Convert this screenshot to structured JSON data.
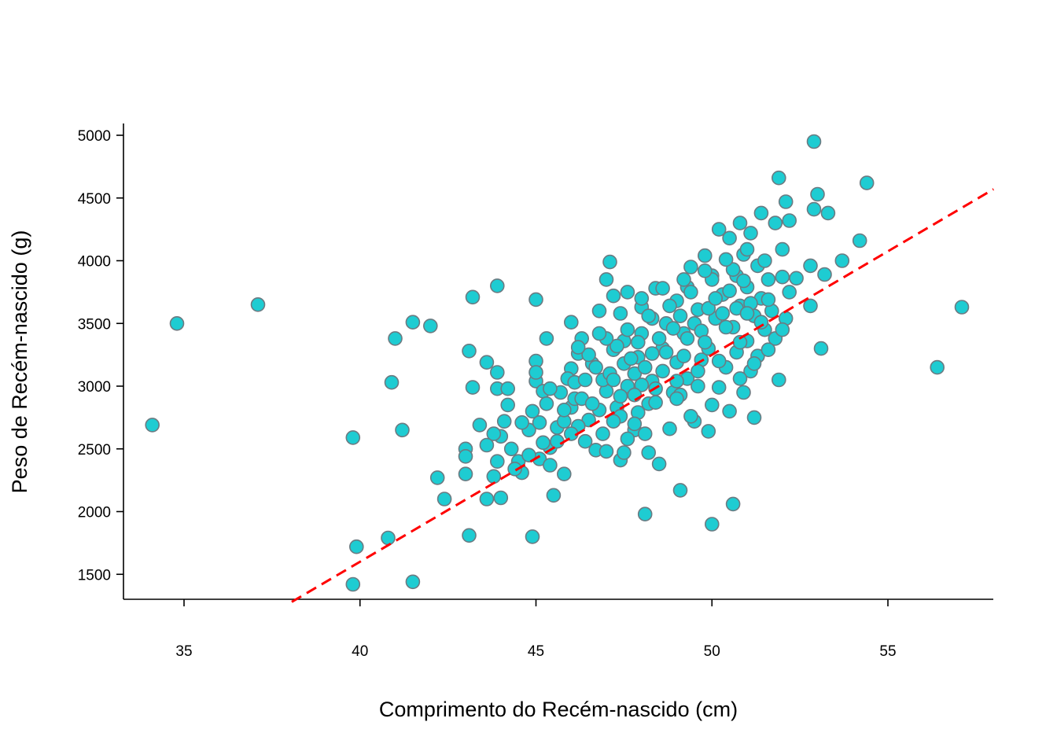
{
  "chart_data": {
    "type": "scatter",
    "title": "",
    "xlabel": "Comprimento do Recém-nascido (cm)",
    "ylabel": "Peso de Recém-nascido (g)",
    "xlim": [
      33.3,
      58.0
    ],
    "ylim": [
      1280,
      5100
    ],
    "xticks": [
      35,
      40,
      45,
      50,
      55
    ],
    "yticks": [
      1500,
      2000,
      2500,
      3000,
      3500,
      4000,
      4500,
      5000
    ],
    "grid": false,
    "legend": "none",
    "point_fill": "#1ECCD2",
    "point_stroke": "#6B7B82",
    "trendline": {
      "style": "dashed",
      "color": "#FF0000",
      "intercept": -5000,
      "slope": 165
    },
    "points": [
      [
        34.1,
        2690
      ],
      [
        34.8,
        3500
      ],
      [
        37.1,
        3650
      ],
      [
        39.8,
        2590
      ],
      [
        39.9,
        1720
      ],
      [
        39.8,
        1420
      ],
      [
        40.8,
        1790
      ],
      [
        40.9,
        3030
      ],
      [
        41.0,
        3380
      ],
      [
        41.2,
        2650
      ],
      [
        41.5,
        1440
      ],
      [
        41.5,
        3510
      ],
      [
        42.0,
        3480
      ],
      [
        42.2,
        2270
      ],
      [
        42.4,
        2100
      ],
      [
        43.0,
        2500
      ],
      [
        43.0,
        2300
      ],
      [
        43.0,
        2440
      ],
      [
        43.1,
        3280
      ],
      [
        43.2,
        3710
      ],
      [
        43.2,
        2990
      ],
      [
        43.4,
        2690
      ],
      [
        43.6,
        3190
      ],
      [
        43.1,
        1810
      ],
      [
        43.6,
        2100
      ],
      [
        43.8,
        2280
      ],
      [
        43.9,
        2400
      ],
      [
        43.9,
        2980
      ],
      [
        43.9,
        3110
      ],
      [
        43.9,
        3800
      ],
      [
        44.0,
        2110
      ],
      [
        44.0,
        2600
      ],
      [
        44.1,
        2720
      ],
      [
        44.2,
        2980
      ],
      [
        44.3,
        2500
      ],
      [
        44.5,
        2400
      ],
      [
        44.6,
        2310
      ],
      [
        44.8,
        2650
      ],
      [
        44.9,
        2800
      ],
      [
        44.9,
        1800
      ],
      [
        45.0,
        3040
      ],
      [
        45.0,
        3200
      ],
      [
        45.0,
        3690
      ],
      [
        45.1,
        2710
      ],
      [
        45.1,
        2420
      ],
      [
        45.2,
        2960
      ],
      [
        45.3,
        2860
      ],
      [
        45.3,
        3380
      ],
      [
        45.4,
        2370
      ],
      [
        45.4,
        2510
      ],
      [
        45.5,
        2130
      ],
      [
        45.6,
        2670
      ],
      [
        45.8,
        2720
      ],
      [
        45.8,
        2300
      ],
      [
        46.0,
        3510
      ],
      [
        46.0,
        3140
      ],
      [
        46.0,
        2830
      ],
      [
        46.1,
        2900
      ],
      [
        46.2,
        3260
      ],
      [
        46.3,
        3380
      ],
      [
        46.4,
        2560
      ],
      [
        46.5,
        2730
      ],
      [
        46.6,
        3180
      ],
      [
        46.7,
        2490
      ],
      [
        46.8,
        3600
      ],
      [
        46.9,
        2620
      ],
      [
        47.0,
        3850
      ],
      [
        47.0,
        2960
      ],
      [
        47.1,
        3990
      ],
      [
        47.2,
        3290
      ],
      [
        47.2,
        3720
      ],
      [
        47.3,
        2830
      ],
      [
        47.4,
        2410
      ],
      [
        47.4,
        2760
      ],
      [
        47.5,
        3360
      ],
      [
        47.5,
        2470
      ],
      [
        47.6,
        3750
      ],
      [
        47.6,
        3000
      ],
      [
        47.8,
        3100
      ],
      [
        47.8,
        2650
      ],
      [
        47.9,
        3230
      ],
      [
        47.9,
        2790
      ],
      [
        48.0,
        3420
      ],
      [
        48.0,
        3630
      ],
      [
        48.1,
        1980
      ],
      [
        48.1,
        2620
      ],
      [
        48.2,
        2860
      ],
      [
        48.3,
        3540
      ],
      [
        48.3,
        3040
      ],
      [
        48.4,
        3780
      ],
      [
        48.5,
        2380
      ],
      [
        48.6,
        3300
      ],
      [
        48.7,
        3500
      ],
      [
        48.8,
        2660
      ],
      [
        48.9,
        2950
      ],
      [
        49.0,
        3190
      ],
      [
        49.0,
        3680
      ],
      [
        49.1,
        2170
      ],
      [
        49.1,
        2930
      ],
      [
        49.2,
        3420
      ],
      [
        49.3,
        3790
      ],
      [
        49.3,
        3060
      ],
      [
        49.4,
        3950
      ],
      [
        49.5,
        2720
      ],
      [
        49.6,
        3610
      ],
      [
        49.7,
        3210
      ],
      [
        49.8,
        4040
      ],
      [
        49.9,
        3300
      ],
      [
        49.9,
        2640
      ],
      [
        50.0,
        3880
      ],
      [
        50.0,
        1900
      ],
      [
        50.1,
        3540
      ],
      [
        50.2,
        2990
      ],
      [
        50.2,
        4250
      ],
      [
        50.3,
        3730
      ],
      [
        50.4,
        3150
      ],
      [
        50.5,
        4180
      ],
      [
        50.5,
        2800
      ],
      [
        50.6,
        3470
      ],
      [
        50.6,
        2060
      ],
      [
        50.7,
        3880
      ],
      [
        50.7,
        3270
      ],
      [
        50.8,
        4300
      ],
      [
        50.8,
        3640
      ],
      [
        50.9,
        2950
      ],
      [
        50.9,
        4050
      ],
      [
        51.0,
        3360
      ],
      [
        51.0,
        3790
      ],
      [
        51.1,
        3120
      ],
      [
        51.1,
        4220
      ],
      [
        51.2,
        3560
      ],
      [
        51.2,
        2750
      ],
      [
        51.3,
        3960
      ],
      [
        51.3,
        3240
      ],
      [
        51.4,
        4380
      ],
      [
        51.4,
        3700
      ],
      [
        51.5,
        3450
      ],
      [
        51.5,
        4000
      ],
      [
        51.6,
        3850
      ],
      [
        51.7,
        3600
      ],
      [
        51.8,
        4300
      ],
      [
        51.8,
        3380
      ],
      [
        51.9,
        3050
      ],
      [
        51.9,
        4660
      ],
      [
        52.0,
        4090
      ],
      [
        52.0,
        3870
      ],
      [
        52.1,
        4470
      ],
      [
        52.1,
        3540
      ],
      [
        52.2,
        3750
      ],
      [
        52.2,
        4320
      ],
      [
        52.4,
        3860
      ],
      [
        52.8,
        3640
      ],
      [
        52.8,
        3960
      ],
      [
        52.9,
        4410
      ],
      [
        52.9,
        4950
      ],
      [
        53.0,
        4530
      ],
      [
        53.1,
        3300
      ],
      [
        53.2,
        3890
      ],
      [
        53.3,
        4380
      ],
      [
        53.7,
        4000
      ],
      [
        54.2,
        4160
      ],
      [
        54.4,
        4620
      ],
      [
        56.4,
        3150
      ],
      [
        57.1,
        3630
      ],
      [
        45.7,
        2950
      ],
      [
        45.9,
        3060
      ],
      [
        46.1,
        3030
      ],
      [
        46.3,
        2900
      ],
      [
        46.5,
        3250
      ],
      [
        46.7,
        3150
      ],
      [
        46.9,
        3050
      ],
      [
        47.1,
        3100
      ],
      [
        47.3,
        3320
      ],
      [
        47.5,
        3180
      ],
      [
        47.7,
        3220
      ],
      [
        47.9,
        3350
      ],
      [
        48.1,
        3150
      ],
      [
        48.3,
        3260
      ],
      [
        48.5,
        3380
      ],
      [
        48.7,
        3270
      ],
      [
        48.9,
        3460
      ],
      [
        49.1,
        3560
      ],
      [
        49.3,
        3380
      ],
      [
        49.5,
        3500
      ],
      [
        49.7,
        3440
      ],
      [
        49.9,
        3620
      ],
      [
        50.1,
        3700
      ],
      [
        50.3,
        3580
      ],
      [
        50.5,
        3760
      ],
      [
        50.7,
        3620
      ],
      [
        50.9,
        3840
      ],
      [
        51.1,
        3660
      ],
      [
        46.2,
        2680
      ],
      [
        46.8,
        2810
      ],
      [
        47.4,
        2920
      ],
      [
        48.0,
        3010
      ],
      [
        48.6,
        3120
      ],
      [
        49.2,
        3240
      ],
      [
        49.8,
        3350
      ],
      [
        50.4,
        3470
      ],
      [
        51.0,
        3580
      ],
      [
        51.6,
        3690
      ],
      [
        45.6,
        2560
      ],
      [
        45.8,
        2810
      ],
      [
        46.4,
        3050
      ],
      [
        47.0,
        3380
      ],
      [
        47.6,
        3450
      ],
      [
        48.2,
        3560
      ],
      [
        48.8,
        3640
      ],
      [
        49.4,
        3750
      ],
      [
        50.0,
        3850
      ],
      [
        50.6,
        3930
      ],
      [
        47.2,
        3050
      ],
      [
        47.8,
        2930
      ],
      [
        48.4,
        2980
      ],
      [
        49.0,
        3040
      ],
      [
        49.6,
        3120
      ],
      [
        50.2,
        3200
      ],
      [
        50.8,
        3350
      ],
      [
        51.4,
        3510
      ],
      [
        46.6,
        2860
      ],
      [
        47.2,
        2720
      ],
      [
        47.8,
        2700
      ],
      [
        48.4,
        2870
      ],
      [
        49.0,
        2900
      ],
      [
        49.6,
        3000
      ],
      [
        44.6,
        2710
      ],
      [
        45.2,
        2550
      ],
      [
        45.4,
        2980
      ],
      [
        44.8,
        2450
      ],
      [
        43.8,
        2620
      ],
      [
        44.4,
        2340
      ],
      [
        48.0,
        3700
      ],
      [
        48.6,
        3780
      ],
      [
        49.2,
        3850
      ],
      [
        49.8,
        3920
      ],
      [
        50.4,
        4010
      ],
      [
        51.0,
        4090
      ],
      [
        47.4,
        3580
      ],
      [
        46.8,
        3420
      ],
      [
        46.2,
        3310
      ],
      [
        50.8,
        3060
      ],
      [
        51.2,
        3180
      ],
      [
        51.6,
        3290
      ],
      [
        52.0,
        3450
      ],
      [
        48.2,
        2470
      ],
      [
        47.6,
        2580
      ],
      [
        49.4,
        2760
      ],
      [
        50.0,
        2850
      ],
      [
        45.0,
        3110
      ],
      [
        44.2,
        2850
      ],
      [
        43.6,
        2530
      ],
      [
        47.0,
        2480
      ],
      [
        46.0,
        2620
      ]
    ]
  }
}
